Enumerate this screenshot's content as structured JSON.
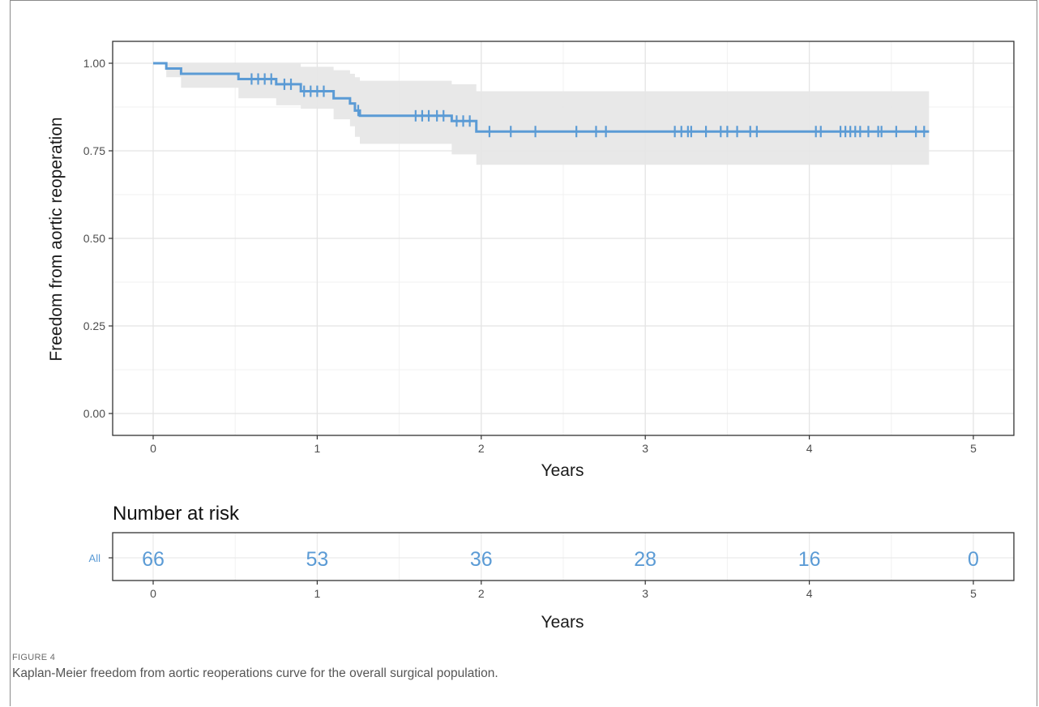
{
  "figure": {
    "label": "FIGURE 4",
    "caption": "Kaplan-Meier freedom from aortic reoperations curve for the overall surgical population."
  },
  "chart_data": {
    "type": "line",
    "subtype": "kaplan-meier",
    "xlabel": "Years",
    "ylabel": "Freedom from aortic reoperation",
    "xlim": [
      0,
      5
    ],
    "ylim": [
      0,
      1
    ],
    "x_ticks": [
      "0",
      "1",
      "2",
      "3",
      "4",
      "5"
    ],
    "y_ticks": [
      "0.00",
      "0.25",
      "0.50",
      "0.75",
      "1.00"
    ],
    "grid": true,
    "color": "#5b9bd5",
    "ci_color": "#e6e6e6",
    "series": [
      {
        "steps": [
          [
            0,
            1.0
          ],
          [
            0.08,
            0.985
          ],
          [
            0.17,
            0.97
          ],
          [
            0.52,
            0.955
          ],
          [
            0.75,
            0.94
          ],
          [
            0.9,
            0.92
          ],
          [
            1.1,
            0.9
          ],
          [
            1.2,
            0.885
          ],
          [
            1.23,
            0.865
          ],
          [
            1.26,
            0.85
          ],
          [
            1.82,
            0.835
          ],
          [
            1.97,
            0.805
          ],
          [
            4.73,
            0.805
          ]
        ],
        "ci_steps": [
          [
            0,
            1.0,
            1.0
          ],
          [
            0.08,
            0.96,
            1.0
          ],
          [
            0.17,
            0.93,
            1.0
          ],
          [
            0.52,
            0.9,
            1.0
          ],
          [
            0.75,
            0.88,
            1.0
          ],
          [
            0.9,
            0.87,
            0.99
          ],
          [
            1.1,
            0.84,
            0.98
          ],
          [
            1.2,
            0.82,
            0.97
          ],
          [
            1.23,
            0.79,
            0.96
          ],
          [
            1.26,
            0.77,
            0.95
          ],
          [
            1.82,
            0.74,
            0.94
          ],
          [
            1.97,
            0.71,
            0.92
          ],
          [
            4.73,
            0.71,
            0.92
          ]
        ],
        "censored": [
          0.6,
          0.64,
          0.68,
          0.72,
          0.8,
          0.84,
          0.92,
          0.96,
          1.0,
          1.04,
          1.25,
          1.6,
          1.64,
          1.68,
          1.73,
          1.77,
          1.85,
          1.89,
          1.93,
          2.05,
          2.18,
          2.33,
          2.58,
          2.7,
          2.76,
          3.18,
          3.22,
          3.26,
          3.28,
          3.37,
          3.46,
          3.5,
          3.56,
          3.64,
          3.68,
          4.04,
          4.07,
          4.19,
          4.22,
          4.25,
          4.28,
          4.31,
          4.36,
          4.42,
          4.44,
          4.53,
          4.65,
          4.7
        ]
      }
    ],
    "risk_table": {
      "title": "Number at risk",
      "strata_label": "All",
      "xlabel": "Years",
      "x_ticks": [
        "0",
        "1",
        "2",
        "3",
        "4",
        "5"
      ],
      "values": [
        66,
        53,
        36,
        28,
        16,
        0
      ]
    }
  }
}
